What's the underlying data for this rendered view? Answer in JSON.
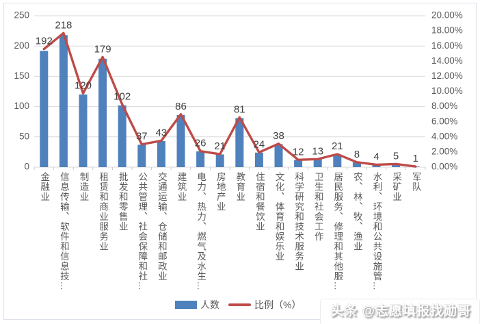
{
  "chart_data": {
    "type": "bar",
    "title": "",
    "categories": [
      "金融业",
      "信息传输、软件和信息技…",
      "制造业",
      "租赁和商业服务业",
      "批发和零售业",
      "公共管理、社会保障和社…",
      "交通运输、仓储和邮政业",
      "建筑业",
      "电力、热力、燃气及水生…",
      "房地产业",
      "教育业",
      "住宿和餐饮业",
      "文化、体育和娱乐业",
      "科学研究和技术服务业",
      "卫生和社会工作",
      "居民服务、修理和其他服…",
      "农、林、牧、渔业",
      "水利、环境和公共设施管…",
      "采矿业",
      "军队"
    ],
    "series": [
      {
        "name": "人数",
        "type": "bar",
        "axis": "left",
        "color": "#4F81BD",
        "values": [
          192,
          218,
          120,
          179,
          102,
          37,
          43,
          86,
          26,
          21,
          81,
          24,
          38,
          12,
          13,
          21,
          8,
          4,
          5,
          1
        ]
      },
      {
        "name": "比例（%）",
        "type": "line",
        "axis": "right",
        "color": "#BE4B48",
        "values": [
          15.6,
          17.71,
          9.75,
          14.54,
          8.29,
          3.01,
          3.49,
          6.99,
          2.11,
          1.71,
          6.58,
          1.95,
          3.09,
          0.97,
          1.06,
          1.71,
          0.65,
          0.32,
          0.41,
          0.08
        ]
      }
    ],
    "left_axis": {
      "min": 0,
      "max": 250,
      "ticks": [
        "0",
        "50",
        "100",
        "150",
        "200",
        "250"
      ]
    },
    "right_axis": {
      "min": 0,
      "max": 20,
      "ticks": [
        "0.00%",
        "2.00%",
        "4.00%",
        "6.00%",
        "8.00%",
        "10.00%",
        "12.00%",
        "14.00%",
        "16.00%",
        "18.00%",
        "20.00%"
      ]
    },
    "grid": "horizontal",
    "legend_position": "bottom",
    "xlabel": "",
    "ylabel": ""
  },
  "legend": {
    "bar_label": "人数",
    "line_label": "比例（%）"
  },
  "watermark": {
    "text": "头条 @志愿填报找勋哥"
  },
  "colors": {
    "bar": "#4F81BD",
    "line": "#BE4B48",
    "grid": "#D9D9D9",
    "axis_text": "#595959",
    "value_text": "#404040"
  }
}
